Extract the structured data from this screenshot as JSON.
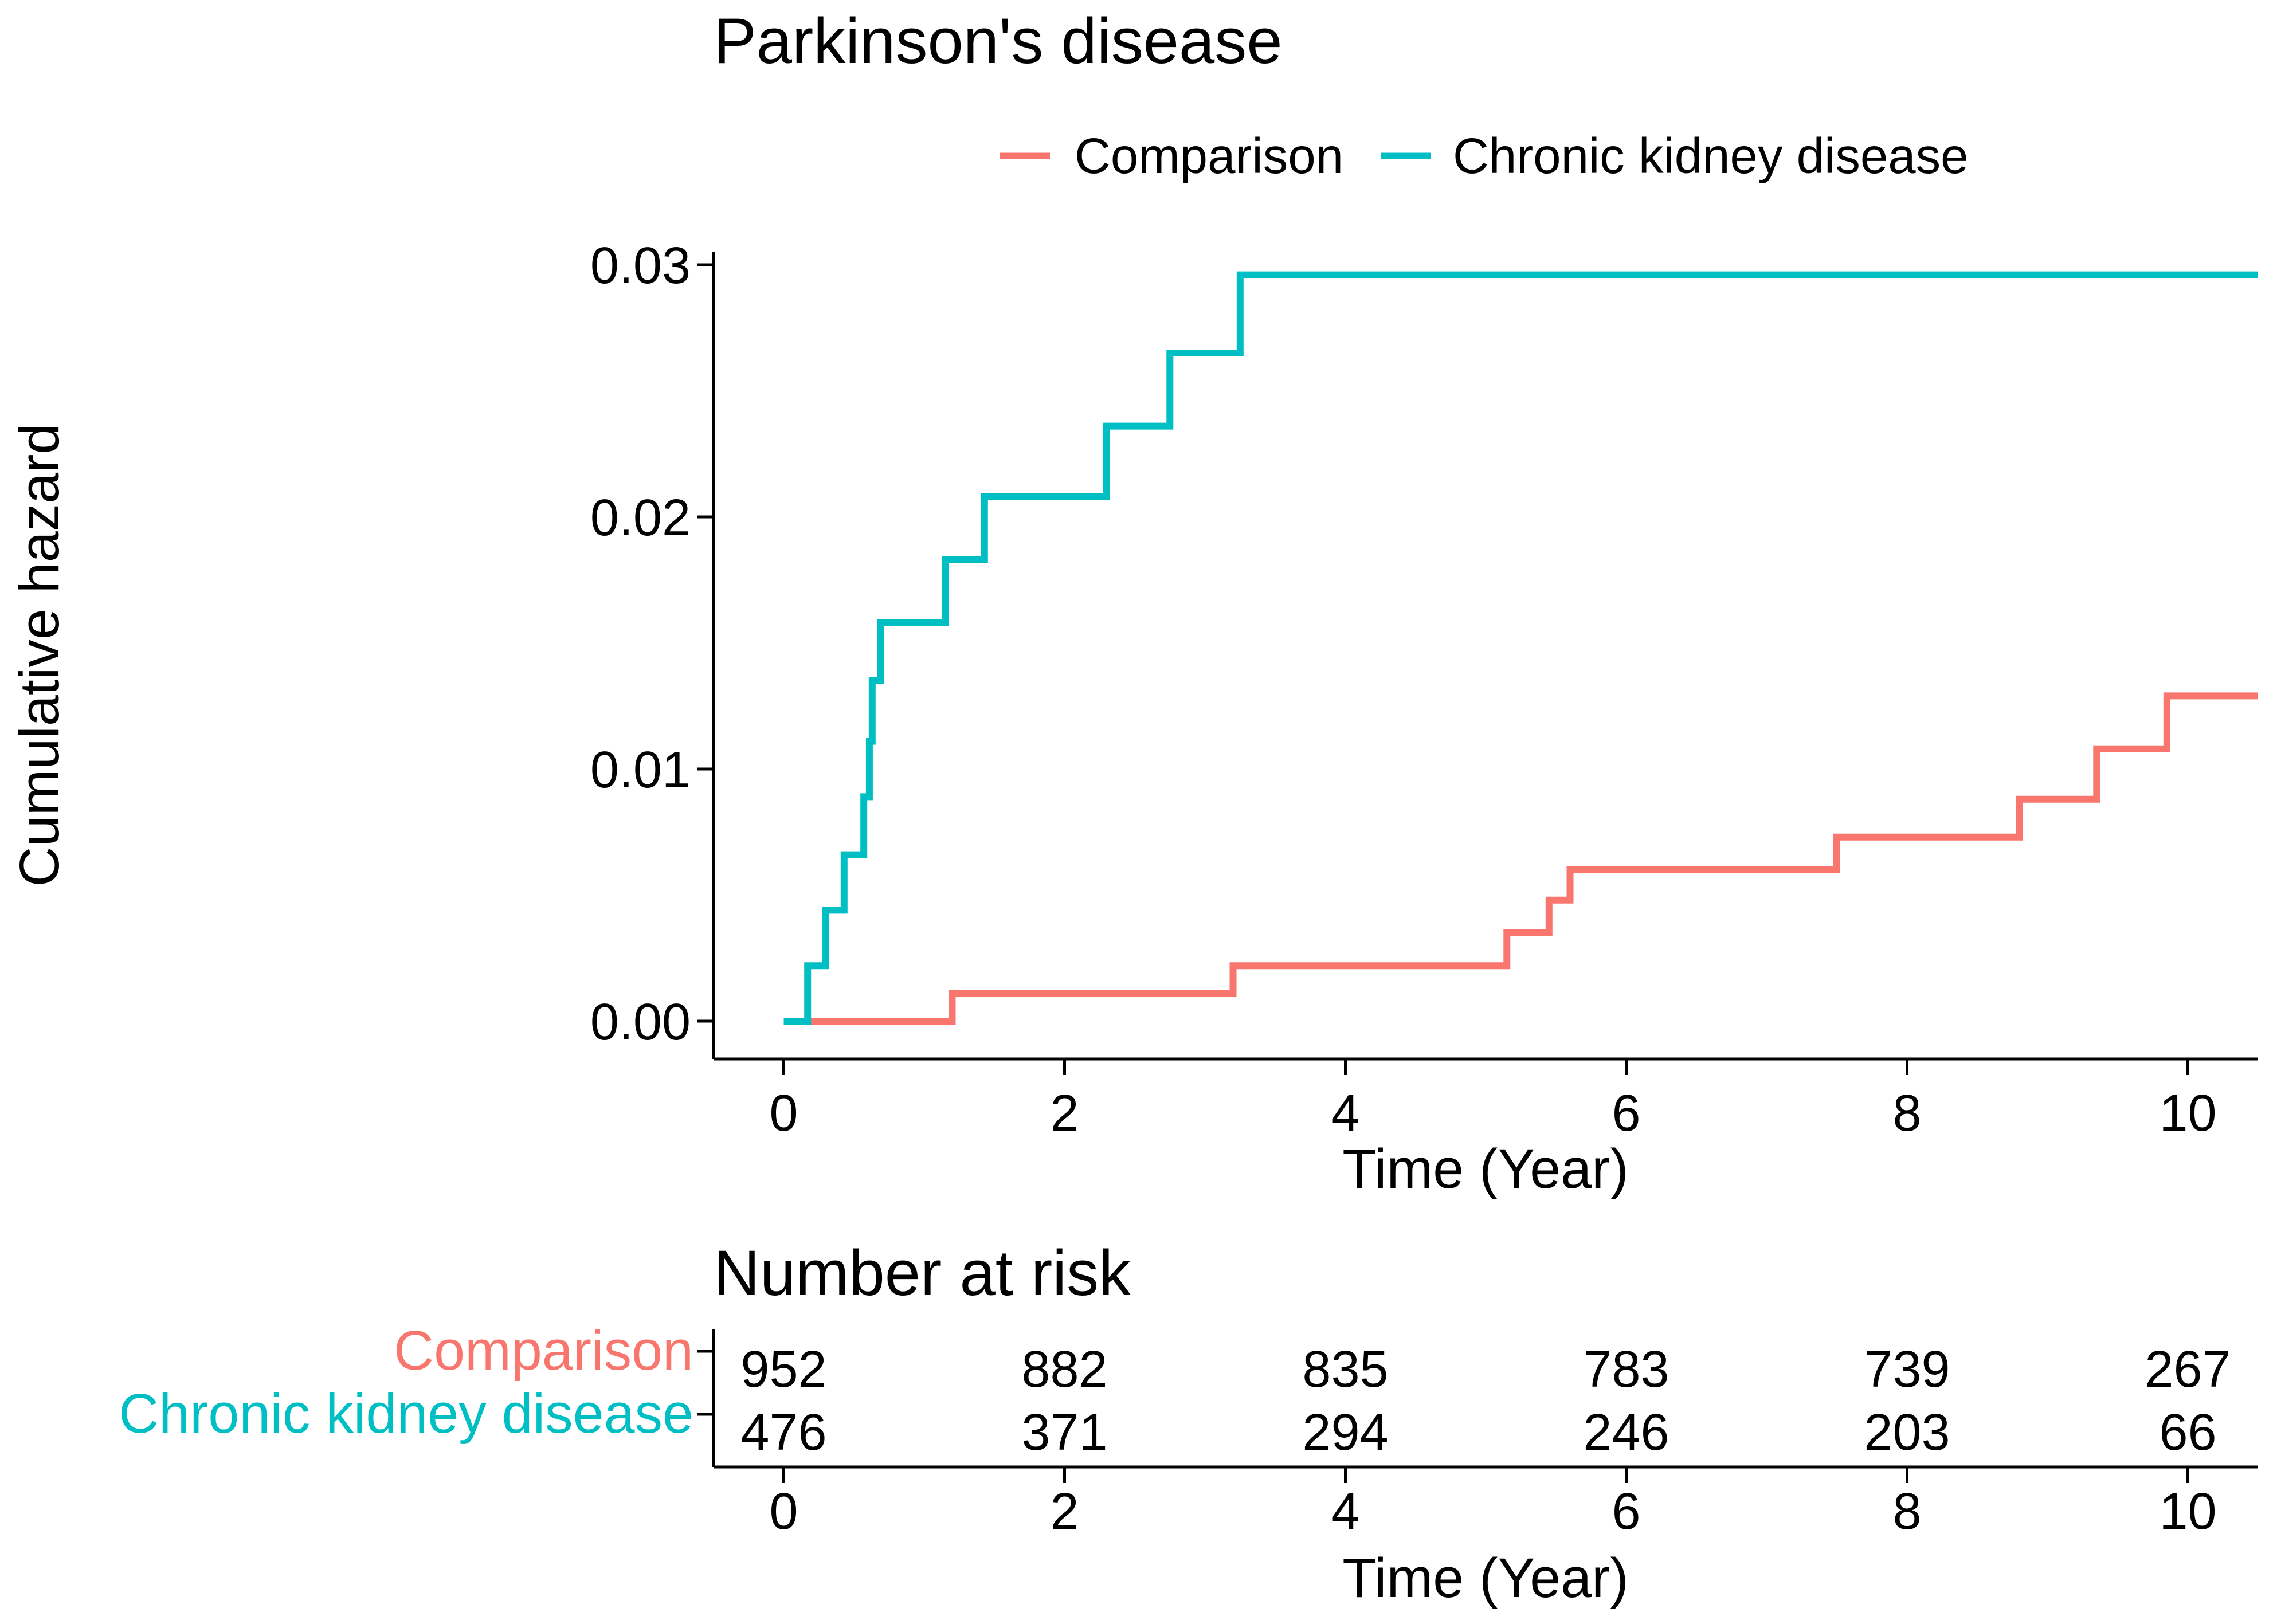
{
  "chart_data": {
    "type": "line",
    "step": true,
    "title": "Parkinson's disease",
    "xlabel": "Time (Year)",
    "ylabel": "Cumulative hazard",
    "xlim": [
      -0.5,
      10.5
    ],
    "ylim": [
      -0.0015,
      0.0305
    ],
    "xticks": [
      0,
      2,
      4,
      6,
      8,
      10
    ],
    "xtick_labels": [
      "0",
      "2",
      "4",
      "6",
      "8",
      "10"
    ],
    "yticks": [
      0,
      0.01,
      0.02,
      0.03
    ],
    "ytick_labels": [
      "0.00",
      "0.01",
      "0.02",
      "0.03"
    ],
    "legend_position": "top",
    "series": [
      {
        "name": "Comparison",
        "color": "#F8766D",
        "points": [
          [
            0.15,
            0.0
          ],
          [
            1.2,
            0.0
          ],
          [
            1.2,
            0.0011
          ],
          [
            3.2,
            0.0011
          ],
          [
            3.2,
            0.0022
          ],
          [
            5.15,
            0.0022
          ],
          [
            5.15,
            0.0035
          ],
          [
            5.45,
            0.0035
          ],
          [
            5.45,
            0.0048
          ],
          [
            5.6,
            0.0048
          ],
          [
            5.6,
            0.006
          ],
          [
            7.5,
            0.006
          ],
          [
            7.5,
            0.0073
          ],
          [
            8.8,
            0.0073
          ],
          [
            8.8,
            0.0088
          ],
          [
            9.35,
            0.0088
          ],
          [
            9.35,
            0.0108
          ],
          [
            9.85,
            0.0108
          ],
          [
            9.85,
            0.0129
          ],
          [
            10.5,
            0.0129
          ]
        ]
      },
      {
        "name": "Chronic kidney disease",
        "color": "#00BFC4",
        "points": [
          [
            0.0,
            0.0
          ],
          [
            0.17,
            0.0
          ],
          [
            0.17,
            0.0022
          ],
          [
            0.3,
            0.0022
          ],
          [
            0.3,
            0.0044
          ],
          [
            0.43,
            0.0044
          ],
          [
            0.43,
            0.0066
          ],
          [
            0.57,
            0.0066
          ],
          [
            0.57,
            0.0089
          ],
          [
            0.61,
            0.0089
          ],
          [
            0.61,
            0.0111
          ],
          [
            0.63,
            0.0111
          ],
          [
            0.63,
            0.0135
          ],
          [
            0.69,
            0.0135
          ],
          [
            0.69,
            0.0158
          ],
          [
            1.15,
            0.0158
          ],
          [
            1.15,
            0.0183
          ],
          [
            1.43,
            0.0183
          ],
          [
            1.43,
            0.0208
          ],
          [
            2.3,
            0.0208
          ],
          [
            2.3,
            0.0236
          ],
          [
            2.75,
            0.0236
          ],
          [
            2.75,
            0.0265
          ],
          [
            3.25,
            0.0265
          ],
          [
            3.25,
            0.0296
          ],
          [
            10.5,
            0.0296
          ]
        ]
      }
    ],
    "risk_table": {
      "title": "Number at risk",
      "xlabel": "Time (Year)",
      "times": [
        0,
        2,
        4,
        6,
        8,
        10
      ],
      "groups": [
        {
          "name": "Comparison",
          "color": "#F8766D",
          "values": [
            "952",
            "882",
            "835",
            "783",
            "739",
            "267"
          ]
        },
        {
          "name": "Chronic kidney disease",
          "color": "#00BFC4",
          "values": [
            "476",
            "371",
            "294",
            "246",
            "203",
            "66"
          ]
        }
      ]
    }
  }
}
